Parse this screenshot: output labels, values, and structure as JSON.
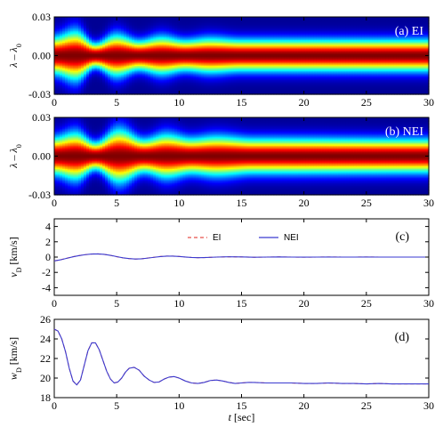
{
  "chart_data": [
    {
      "type": "heatmap",
      "panel_label": "(a) EI",
      "ylabel_main": "λ – λ",
      "ylabel_sub": "0",
      "x_ticks": [
        "0",
        "5",
        "10",
        "15",
        "20",
        "25",
        "30"
      ],
      "y_ticks": [
        "0.03",
        "0.00",
        "-0.03"
      ],
      "xlim": [
        0,
        30
      ],
      "ylim": [
        -0.03,
        0.03
      ],
      "colormap": "jet",
      "core_halfwidth_nodes": [
        {
          "t": 0,
          "w": 0.0095
        },
        {
          "t": 1.7,
          "w": 0.0125
        },
        {
          "t": 3.3,
          "w": 0.0062
        },
        {
          "t": 5.0,
          "w": 0.0105
        },
        {
          "t": 6.8,
          "w": 0.0075
        },
        {
          "t": 8.6,
          "w": 0.0095
        },
        {
          "t": 10.5,
          "w": 0.0078
        },
        {
          "t": 12.5,
          "w": 0.0088
        },
        {
          "t": 15,
          "w": 0.008
        },
        {
          "t": 30,
          "w": 0.008
        }
      ]
    },
    {
      "type": "heatmap",
      "panel_label": "(b) NEI",
      "ylabel_main": "λ – λ",
      "ylabel_sub": "0",
      "x_ticks": [
        "0",
        "5",
        "10",
        "15",
        "20",
        "25",
        "30"
      ],
      "y_ticks": [
        "0.03",
        "0.00",
        "-0.03"
      ],
      "xlim": [
        0,
        30
      ],
      "ylim": [
        -0.03,
        0.03
      ],
      "colormap": "jet",
      "core_halfwidth_nodes": [
        {
          "t": 0,
          "w": 0.0095
        },
        {
          "t": 1.7,
          "w": 0.012
        },
        {
          "t": 3.3,
          "w": 0.007
        },
        {
          "t": 5.2,
          "w": 0.0135
        },
        {
          "t": 7.2,
          "w": 0.0085
        },
        {
          "t": 9.0,
          "w": 0.011
        },
        {
          "t": 11.0,
          "w": 0.009
        },
        {
          "t": 13.0,
          "w": 0.01
        },
        {
          "t": 16,
          "w": 0.0088
        },
        {
          "t": 30,
          "w": 0.0085
        }
      ]
    },
    {
      "type": "line",
      "panel_label": "(c)",
      "ylabel_main": "v",
      "ylabel_sub": "D",
      "ylabel_unit": " [km/s]",
      "x_ticks": [
        "0",
        "5",
        "10",
        "15",
        "20",
        "25",
        "30"
      ],
      "y_ticks": [
        "4",
        "2",
        "0",
        "-2",
        "-4"
      ],
      "xlim": [
        0,
        30
      ],
      "ylim": [
        -5,
        5
      ],
      "legend_position": "top-center",
      "series": [
        {
          "name": "EI",
          "style": "dashed",
          "color": "#e8504a",
          "x": [
            0,
            0.5,
            1,
            1.5,
            2,
            2.5,
            3,
            3.5,
            4,
            4.5,
            5,
            5.5,
            6,
            6.5,
            7,
            7.5,
            8,
            8.5,
            9,
            9.5,
            10,
            10.5,
            11,
            11.5,
            12,
            13,
            14,
            15,
            16,
            17,
            18,
            19,
            20,
            21,
            22,
            23,
            24,
            25,
            26,
            27,
            28,
            29,
            30
          ],
          "y": [
            -0.5,
            -0.35,
            -0.15,
            0.05,
            0.2,
            0.32,
            0.4,
            0.42,
            0.35,
            0.22,
            0.05,
            -0.1,
            -0.2,
            -0.25,
            -0.22,
            -0.12,
            -0.02,
            0.08,
            0.12,
            0.12,
            0.08,
            0.0,
            -0.05,
            -0.08,
            -0.06,
            0.0,
            0.04,
            0.02,
            -0.02,
            0.0,
            0.02,
            0.0,
            -0.01,
            0.0,
            0.01,
            0.0,
            0.0,
            0.01,
            0.0,
            0.0,
            0.0,
            0.0,
            0.0
          ]
        },
        {
          "name": "NEI",
          "style": "solid",
          "color": "#3a3ad0",
          "x": [
            0,
            0.5,
            1,
            1.5,
            2,
            2.5,
            3,
            3.5,
            4,
            4.5,
            5,
            5.5,
            6,
            6.5,
            7,
            7.5,
            8,
            8.5,
            9,
            9.5,
            10,
            10.5,
            11,
            11.5,
            12,
            13,
            14,
            15,
            16,
            17,
            18,
            19,
            20,
            21,
            22,
            23,
            24,
            25,
            26,
            27,
            28,
            29,
            30
          ],
          "y": [
            -0.5,
            -0.36,
            -0.16,
            0.04,
            0.2,
            0.32,
            0.4,
            0.42,
            0.36,
            0.23,
            0.06,
            -0.09,
            -0.2,
            -0.25,
            -0.23,
            -0.13,
            -0.03,
            0.07,
            0.12,
            0.12,
            0.08,
            0.01,
            -0.05,
            -0.08,
            -0.06,
            0.0,
            0.04,
            0.02,
            -0.02,
            0.0,
            0.02,
            0.0,
            -0.01,
            0.0,
            0.01,
            0.0,
            0.0,
            0.01,
            0.0,
            0.0,
            0.0,
            0.0,
            0.0
          ]
        }
      ]
    },
    {
      "type": "line",
      "panel_label": "(d)",
      "ylabel_main": "w",
      "ylabel_sub": "D",
      "ylabel_unit": " [km/s]",
      "xlabel_main": "t",
      "xlabel_unit": " [sec]",
      "x_ticks": [
        "0",
        "5",
        "10",
        "15",
        "20",
        "25",
        "30"
      ],
      "y_ticks": [
        "26",
        "24",
        "22",
        "20",
        "18"
      ],
      "xlim": [
        0,
        30
      ],
      "ylim": [
        18,
        26
      ],
      "series": [
        {
          "name": "EI",
          "style": "dashed",
          "color": "#e8504a",
          "x": [
            0,
            0.3,
            0.6,
            0.9,
            1.2,
            1.5,
            1.8,
            2.1,
            2.4,
            2.7,
            3.0,
            3.3,
            3.6,
            3.9,
            4.2,
            4.5,
            4.8,
            5.1,
            5.4,
            5.7,
            6.0,
            6.4,
            6.8,
            7.2,
            7.6,
            8.0,
            8.4,
            8.8,
            9.2,
            9.6,
            10.0,
            10.5,
            11.0,
            11.5,
            12.0,
            12.5,
            13.0,
            13.5,
            14.0,
            14.5,
            15.0,
            15.5,
            16,
            17,
            18,
            19,
            20,
            21,
            22,
            23,
            24,
            25,
            26,
            27,
            28,
            29,
            30
          ],
          "y": [
            25.0,
            24.8,
            24.0,
            22.7,
            21.0,
            19.7,
            19.3,
            19.8,
            21.3,
            22.8,
            23.6,
            23.6,
            22.9,
            21.8,
            20.7,
            19.9,
            19.5,
            19.6,
            20.0,
            20.6,
            21.0,
            21.1,
            20.8,
            20.2,
            19.8,
            19.55,
            19.6,
            19.9,
            20.1,
            20.15,
            20.0,
            19.7,
            19.5,
            19.45,
            19.55,
            19.75,
            19.8,
            19.7,
            19.55,
            19.45,
            19.5,
            19.55,
            19.55,
            19.5,
            19.5,
            19.5,
            19.45,
            19.45,
            19.5,
            19.45,
            19.45,
            19.4,
            19.45,
            19.4,
            19.4,
            19.4,
            19.4
          ]
        },
        {
          "name": "NEI",
          "style": "solid",
          "color": "#3a3ad0",
          "x": [
            0,
            0.3,
            0.6,
            0.9,
            1.2,
            1.5,
            1.8,
            2.1,
            2.4,
            2.7,
            3.0,
            3.3,
            3.6,
            3.9,
            4.2,
            4.5,
            4.8,
            5.1,
            5.4,
            5.7,
            6.0,
            6.4,
            6.8,
            7.2,
            7.6,
            8.0,
            8.4,
            8.8,
            9.2,
            9.6,
            10.0,
            10.5,
            11.0,
            11.5,
            12.0,
            12.5,
            13.0,
            13.5,
            14.0,
            14.5,
            15.0,
            15.5,
            16,
            17,
            18,
            19,
            20,
            21,
            22,
            23,
            24,
            25,
            26,
            27,
            28,
            29,
            30
          ],
          "y": [
            25.0,
            24.8,
            24.0,
            22.7,
            21.0,
            19.7,
            19.3,
            19.8,
            21.3,
            22.8,
            23.6,
            23.6,
            22.9,
            21.8,
            20.7,
            19.9,
            19.5,
            19.6,
            20.0,
            20.6,
            21.0,
            21.1,
            20.8,
            20.2,
            19.8,
            19.55,
            19.6,
            19.9,
            20.1,
            20.15,
            20.0,
            19.7,
            19.5,
            19.45,
            19.55,
            19.75,
            19.8,
            19.7,
            19.55,
            19.45,
            19.5,
            19.55,
            19.55,
            19.5,
            19.5,
            19.5,
            19.45,
            19.45,
            19.5,
            19.45,
            19.45,
            19.4,
            19.45,
            19.4,
            19.4,
            19.4,
            19.4
          ]
        }
      ]
    }
  ]
}
